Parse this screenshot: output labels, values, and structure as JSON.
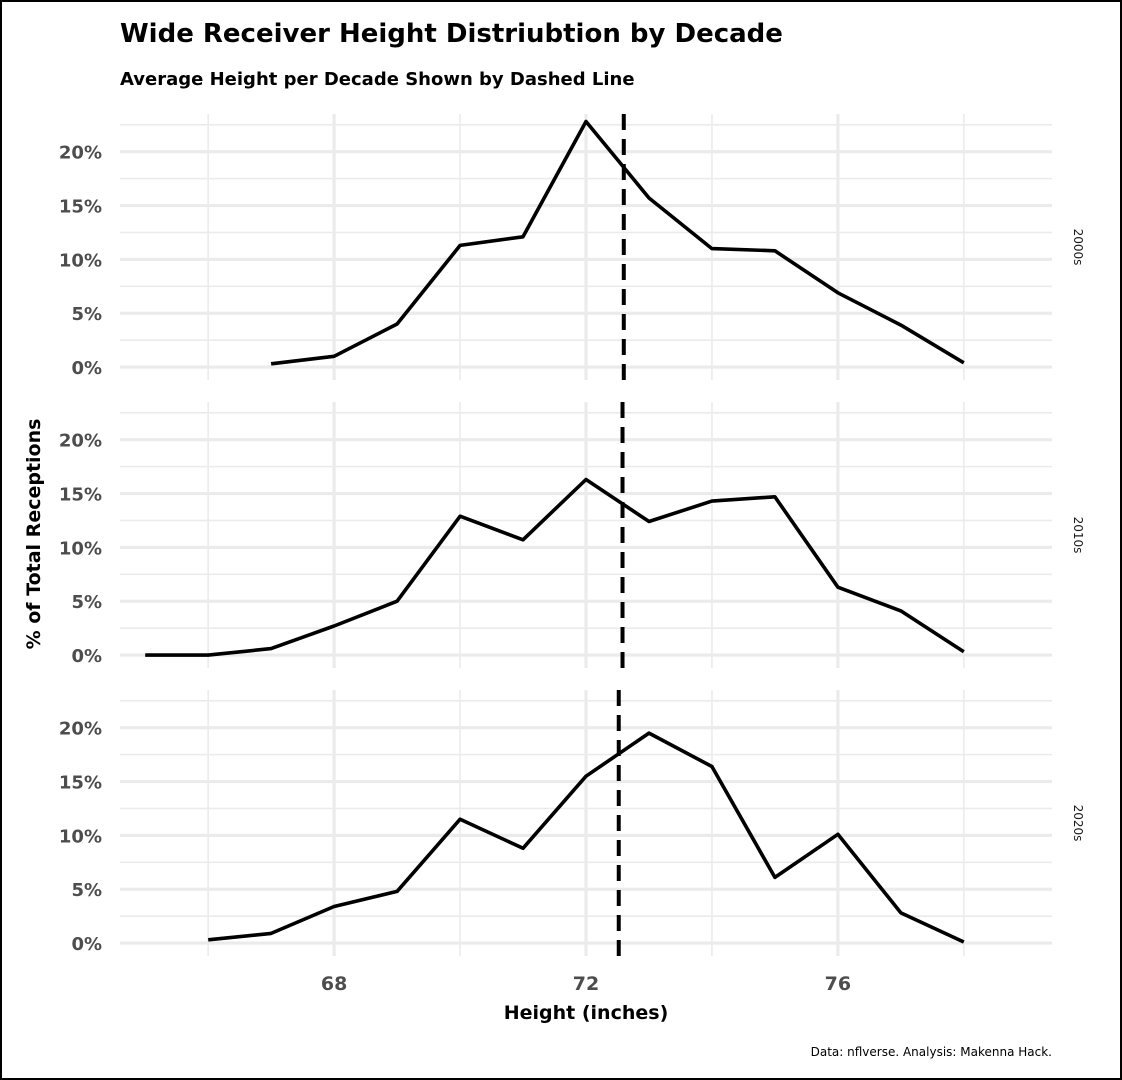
{
  "chart_data": {
    "type": "line",
    "title": "Wide Receiver Height Distriubtion by Decade",
    "subtitle": "Average Height per Decade Shown by Dashed Line",
    "xlabel": "Height (inches)",
    "ylabel": "% of Total Receptions",
    "caption": "Data: nflverse. Analysis: Makenna Hack.",
    "xlim": [
      64.6,
      79.4
    ],
    "ylim": [
      -0.012,
      0.235
    ],
    "x_ticks": [
      68,
      72,
      76
    ],
    "x_tick_labels": [
      "68",
      "72",
      "76"
    ],
    "y_ticks": [
      0,
      0.05,
      0.1,
      0.15,
      0.2
    ],
    "y_tick_labels": [
      "0%",
      "5%",
      "10%",
      "15%",
      "20%"
    ],
    "grid": true,
    "legend": "none",
    "line_color": "#000000",
    "panels": [
      {
        "label": "2000s",
        "mean_height": 72.6,
        "x": [
          67,
          68,
          69,
          70,
          71,
          72,
          73,
          74,
          75,
          76,
          77,
          78
        ],
        "y": [
          0.003,
          0.01,
          0.04,
          0.113,
          0.121,
          0.228,
          0.157,
          0.11,
          0.108,
          0.069,
          0.039,
          0.004
        ]
      },
      {
        "label": "2010s",
        "mean_height": 72.58,
        "x": [
          65,
          66,
          67,
          68,
          69,
          70,
          71,
          72,
          73,
          74,
          75,
          76,
          77,
          78
        ],
        "y": [
          0.0,
          0.0,
          0.006,
          0.027,
          0.05,
          0.129,
          0.107,
          0.163,
          0.124,
          0.143,
          0.147,
          0.063,
          0.041,
          0.003
        ]
      },
      {
        "label": "2020s",
        "mean_height": 72.52,
        "x": [
          66,
          67,
          68,
          69,
          70,
          71,
          72,
          73,
          74,
          75,
          76,
          77,
          78
        ],
        "y": [
          0.003,
          0.009,
          0.034,
          0.048,
          0.115,
          0.088,
          0.155,
          0.195,
          0.164,
          0.061,
          0.101,
          0.028,
          0.001
        ]
      }
    ]
  }
}
